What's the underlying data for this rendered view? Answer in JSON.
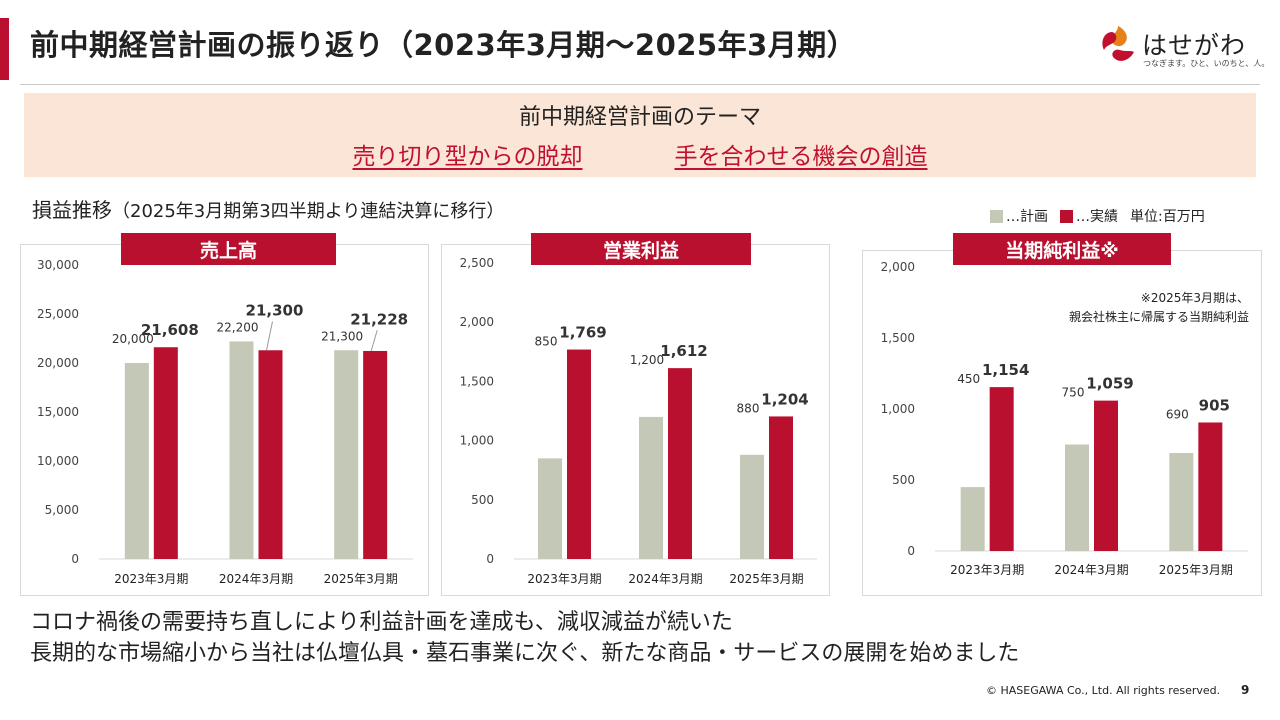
{
  "header": {
    "title": "前中期経営計画の振り返り（2023年3月期～2025年3月期）",
    "logo_text": "はせがわ",
    "logo_tagline": "つなぎます。ひと、いのちと、人。",
    "accent_color": "#b8102e"
  },
  "theme": {
    "title": "前中期経営計画のテーマ",
    "items": [
      "売り切り型からの脱却",
      "手を合わせる機会の創造"
    ]
  },
  "section": {
    "label": "損益推移",
    "sublabel": "（2025年3月期第3四半期より連結決算に移行）"
  },
  "legend": {
    "plan_label": "…計画",
    "actual_label": "…実績",
    "unit_label": "単位:百万円",
    "plan_color": "#c3c8b7",
    "actual_color": "#b8102e"
  },
  "chart_data": [
    {
      "type": "bar",
      "title": "売上高",
      "categories": [
        "2023年3月期",
        "2024年3月期",
        "2025年3月期"
      ],
      "series": [
        {
          "name": "計画",
          "values": [
            20000,
            22200,
            21300
          ]
        },
        {
          "name": "実績",
          "values": [
            21608,
            21300,
            21228
          ]
        }
      ],
      "ylim": [
        0,
        30000
      ],
      "yticks": [
        0,
        5000,
        10000,
        15000,
        20000,
        25000,
        30000
      ],
      "ytick_labels": [
        "0",
        "5,000",
        "10,000",
        "15,000",
        "20,000",
        "25,000",
        "30,000"
      ],
      "plan_labels": [
        "20,000",
        "22,200",
        "21,300"
      ],
      "actual_labels": [
        "21,608",
        "21,300",
        "21,228"
      ],
      "grid": false,
      "note": ""
    },
    {
      "type": "bar",
      "title": "営業利益",
      "categories": [
        "2023年3月期",
        "2024年3月期",
        "2025年3月期"
      ],
      "series": [
        {
          "name": "計画",
          "values": [
            850,
            1200,
            880
          ]
        },
        {
          "name": "実績",
          "values": [
            1769,
            1612,
            1204
          ]
        }
      ],
      "ylim": [
        0,
        2500
      ],
      "yticks": [
        0,
        500,
        1000,
        1500,
        2000,
        2500
      ],
      "ytick_labels": [
        "0",
        "500",
        "1,000",
        "1,500",
        "2,000",
        "2,500"
      ],
      "plan_labels": [
        "850",
        "1,200",
        "880"
      ],
      "actual_labels": [
        "1,769",
        "1,612",
        "1,204"
      ],
      "grid": false,
      "note": ""
    },
    {
      "type": "bar",
      "title": "当期純利益※",
      "categories": [
        "2023年3月期",
        "2024年3月期",
        "2025年3月期"
      ],
      "series": [
        {
          "name": "計画",
          "values": [
            450,
            750,
            690
          ]
        },
        {
          "name": "実績",
          "values": [
            1154,
            1059,
            905
          ]
        }
      ],
      "ylim": [
        0,
        2000
      ],
      "yticks": [
        0,
        500,
        1000,
        1500,
        2000
      ],
      "ytick_labels": [
        "0",
        "500",
        "1,000",
        "1,500",
        "2,000"
      ],
      "plan_labels": [
        "450",
        "750",
        "690"
      ],
      "actual_labels": [
        "1,154",
        "1,059",
        "905"
      ],
      "grid": false,
      "note": "※2025年3月期は、\n親会社株主に帰属する当期純利益"
    }
  ],
  "conclusion": {
    "line1": "コロナ禍後の需要持ち直しにより利益計画を達成も、減収減益が続いた",
    "line2": "長期的な市場縮小から当社は仏壇仏具・墓石事業に次ぐ、新たな商品・サービスの展開を始めました"
  },
  "footer": {
    "copyright": "© HASEGAWA Co., Ltd. All rights reserved.",
    "page": "9"
  }
}
